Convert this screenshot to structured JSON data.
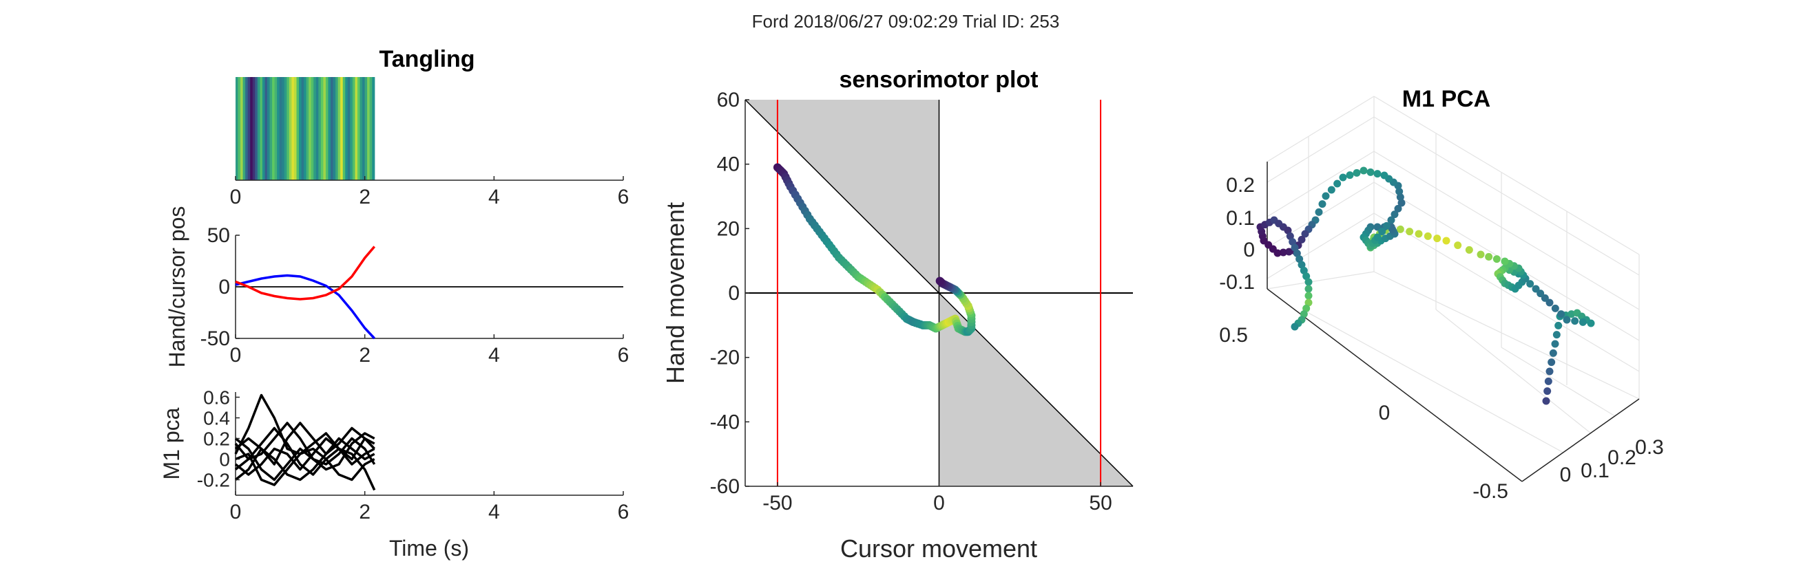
{
  "figure": {
    "suptitle": "Ford 2018/06/27 09:02:29 Trial ID: 253"
  },
  "chart_data": [
    {
      "id": "tangling",
      "type": "heatmap",
      "title": "Tangling",
      "xlabel": "",
      "ylabel": "",
      "xlim": [
        0,
        6
      ],
      "xticks": [
        0,
        2,
        4,
        6
      ],
      "x_extent": [
        0,
        2.15
      ],
      "colormap": "viridis",
      "values": [
        0.55,
        0.7,
        0.85,
        0.6,
        0.35,
        0.2,
        0.05,
        0.15,
        0.3,
        0.55,
        0.7,
        0.5,
        0.3,
        0.45,
        0.6,
        0.75,
        0.65,
        0.5,
        0.4,
        0.45,
        0.55,
        0.7,
        0.85,
        0.95,
        0.9,
        0.7,
        0.5,
        0.4,
        0.5,
        0.65,
        0.8,
        0.7,
        0.55,
        0.45,
        0.6,
        0.75,
        0.85,
        0.7,
        0.5,
        0.35,
        0.45,
        0.6,
        0.8,
        0.95,
        0.7,
        0.5,
        0.4,
        0.55,
        0.7,
        0.9,
        0.75,
        0.55,
        0.45,
        0.6,
        0.8,
        0.65,
        0.5
      ]
    },
    {
      "id": "hand-cursor",
      "type": "line",
      "title": "",
      "xlabel": "",
      "ylabel": "Hand/cursor pos",
      "xlim": [
        0,
        6
      ],
      "ylim": [
        -50,
        50
      ],
      "xticks": [
        0,
        2,
        4,
        6
      ],
      "yticks": [
        -50,
        0,
        50
      ],
      "hline": 0,
      "series": [
        {
          "color": "#0000ff",
          "x": [
            0,
            0.2,
            0.4,
            0.6,
            0.8,
            1.0,
            1.2,
            1.4,
            1.6,
            1.8,
            2.0,
            2.15
          ],
          "y": [
            2,
            5,
            8,
            10,
            11,
            10,
            6,
            1,
            -8,
            -23,
            -40,
            -50
          ]
        },
        {
          "color": "#ff0000",
          "x": [
            0,
            0.2,
            0.4,
            0.6,
            0.8,
            1.0,
            1.2,
            1.4,
            1.6,
            1.8,
            2.0,
            2.15
          ],
          "y": [
            5,
            0,
            -6,
            -9,
            -11,
            -12,
            -11,
            -8,
            -2,
            10,
            28,
            39
          ]
        }
      ]
    },
    {
      "id": "m1-pca-lines",
      "type": "line",
      "title": "",
      "xlabel": "Time (s)",
      "ylabel": "M1 pca",
      "xlim": [
        0,
        6
      ],
      "ylim": [
        -0.35,
        0.65
      ],
      "xticks": [
        0,
        2,
        4,
        6
      ],
      "yticks": [
        -0.2,
        0,
        0.2,
        0.4,
        0.6
      ],
      "series": [
        {
          "color": "#000000",
          "x": [
            0,
            0.2,
            0.4,
            0.6,
            0.8,
            1.0,
            1.2,
            1.4,
            1.6,
            1.8,
            2.0,
            2.15
          ],
          "y": [
            0.05,
            0.3,
            0.62,
            0.4,
            0.1,
            0.05,
            0.15,
            0.25,
            0.1,
            0.0,
            0.2,
            0.1
          ]
        },
        {
          "color": "#000000",
          "x": [
            0,
            0.2,
            0.4,
            0.6,
            0.8,
            1.0,
            1.2,
            1.4,
            1.6,
            1.8,
            2.0,
            2.15
          ],
          "y": [
            0.1,
            0.2,
            0.1,
            -0.05,
            0.2,
            0.35,
            0.2,
            0.05,
            0.15,
            0.3,
            0.2,
            0.15
          ]
        },
        {
          "color": "#000000",
          "x": [
            0,
            0.2,
            0.4,
            0.6,
            0.8,
            1.0,
            1.2,
            1.4,
            1.6,
            1.8,
            2.0,
            2.15
          ],
          "y": [
            -0.1,
            0.0,
            0.15,
            0.3,
            0.15,
            -0.05,
            -0.15,
            0.0,
            0.1,
            0.05,
            -0.1,
            -0.3
          ]
        },
        {
          "color": "#000000",
          "x": [
            0,
            0.2,
            0.4,
            0.6,
            0.8,
            1.0,
            1.2,
            1.4,
            1.6,
            1.8,
            2.0,
            2.15
          ],
          "y": [
            0.2,
            0.1,
            -0.1,
            -0.2,
            -0.05,
            0.1,
            0.0,
            -0.1,
            -0.05,
            0.15,
            0.25,
            0.2
          ]
        },
        {
          "color": "#000000",
          "x": [
            0,
            0.2,
            0.4,
            0.6,
            0.8,
            1.0,
            1.2,
            1.4,
            1.6,
            1.8,
            2.0,
            2.15
          ],
          "y": [
            -0.05,
            -0.15,
            -0.05,
            0.1,
            0.05,
            -0.1,
            0.05,
            0.2,
            0.1,
            -0.05,
            0.05,
            0.1
          ]
        },
        {
          "color": "#000000",
          "x": [
            0,
            0.2,
            0.4,
            0.6,
            0.8,
            1.0,
            1.2,
            1.4,
            1.6,
            1.8,
            2.0,
            2.15
          ],
          "y": [
            0.0,
            0.05,
            -0.2,
            -0.25,
            -0.1,
            0.05,
            0.1,
            0.0,
            -0.15,
            -0.2,
            -0.05,
            0.0
          ]
        },
        {
          "color": "#000000",
          "x": [
            0,
            0.2,
            0.4,
            0.6,
            0.8,
            1.0,
            1.2,
            1.4,
            1.6,
            1.8,
            2.0,
            2.15
          ],
          "y": [
            0.15,
            0.0,
            0.05,
            0.2,
            0.35,
            0.2,
            0.0,
            -0.05,
            0.05,
            0.2,
            0.1,
            -0.05
          ]
        },
        {
          "color": "#000000",
          "x": [
            0,
            0.2,
            0.4,
            0.6,
            0.8,
            1.0,
            1.2,
            1.4,
            1.6,
            1.8,
            2.0,
            2.15
          ],
          "y": [
            -0.2,
            -0.1,
            0.1,
            0.0,
            -0.15,
            -0.2,
            -0.1,
            0.05,
            0.2,
            0.1,
            0.0,
            0.05
          ]
        }
      ]
    },
    {
      "id": "sensorimotor",
      "type": "scatter",
      "title": "sensorimotor plot",
      "xlabel": "Cursor movement",
      "ylabel": "Hand movement",
      "xlim": [
        -60,
        60
      ],
      "ylim": [
        -60,
        60
      ],
      "xticks": [
        -50,
        0,
        50
      ],
      "yticks": [
        -60,
        -40,
        -20,
        0,
        20,
        40,
        60
      ],
      "vlines_red": [
        -50,
        50
      ],
      "path": {
        "x": [
          -50,
          -48,
          -46,
          -43,
          -40,
          -37,
          -34,
          -31,
          -28,
          -25,
          -22,
          -19,
          -16,
          -13,
          -10,
          -8,
          -5,
          -3,
          -1,
          1,
          3,
          5,
          6,
          8,
          9,
          10,
          10,
          9,
          7,
          5,
          3,
          1,
          0
        ],
        "y": [
          39,
          37,
          33,
          28,
          23,
          19,
          15,
          11,
          8,
          5,
          3,
          1,
          -2,
          -5,
          -8,
          -9,
          -10,
          -10,
          -11,
          -10,
          -9,
          -8,
          -11,
          -12,
          -12,
          -11,
          -7,
          -4,
          -1,
          1,
          2,
          3,
          4
        ],
        "c": [
          0.05,
          0.1,
          0.2,
          0.3,
          0.4,
          0.45,
          0.5,
          0.55,
          0.6,
          0.7,
          0.8,
          0.9,
          0.7,
          0.6,
          0.5,
          0.45,
          0.5,
          0.6,
          0.7,
          0.85,
          0.95,
          0.9,
          0.7,
          0.6,
          0.5,
          0.55,
          0.7,
          0.9,
          0.8,
          0.4,
          0.2,
          0.1,
          0.05
        ]
      }
    },
    {
      "id": "m1-pca-3d",
      "type": "scatter",
      "title": "M1 PCA",
      "xlabel": "",
      "ylabel": "",
      "zticks": [
        -0.1,
        0,
        0.1,
        0.2
      ],
      "yticks": [
        0,
        0.5
      ],
      "xticks": [
        -0.5,
        0,
        0.1,
        0.2,
        0.3
      ]
    }
  ]
}
